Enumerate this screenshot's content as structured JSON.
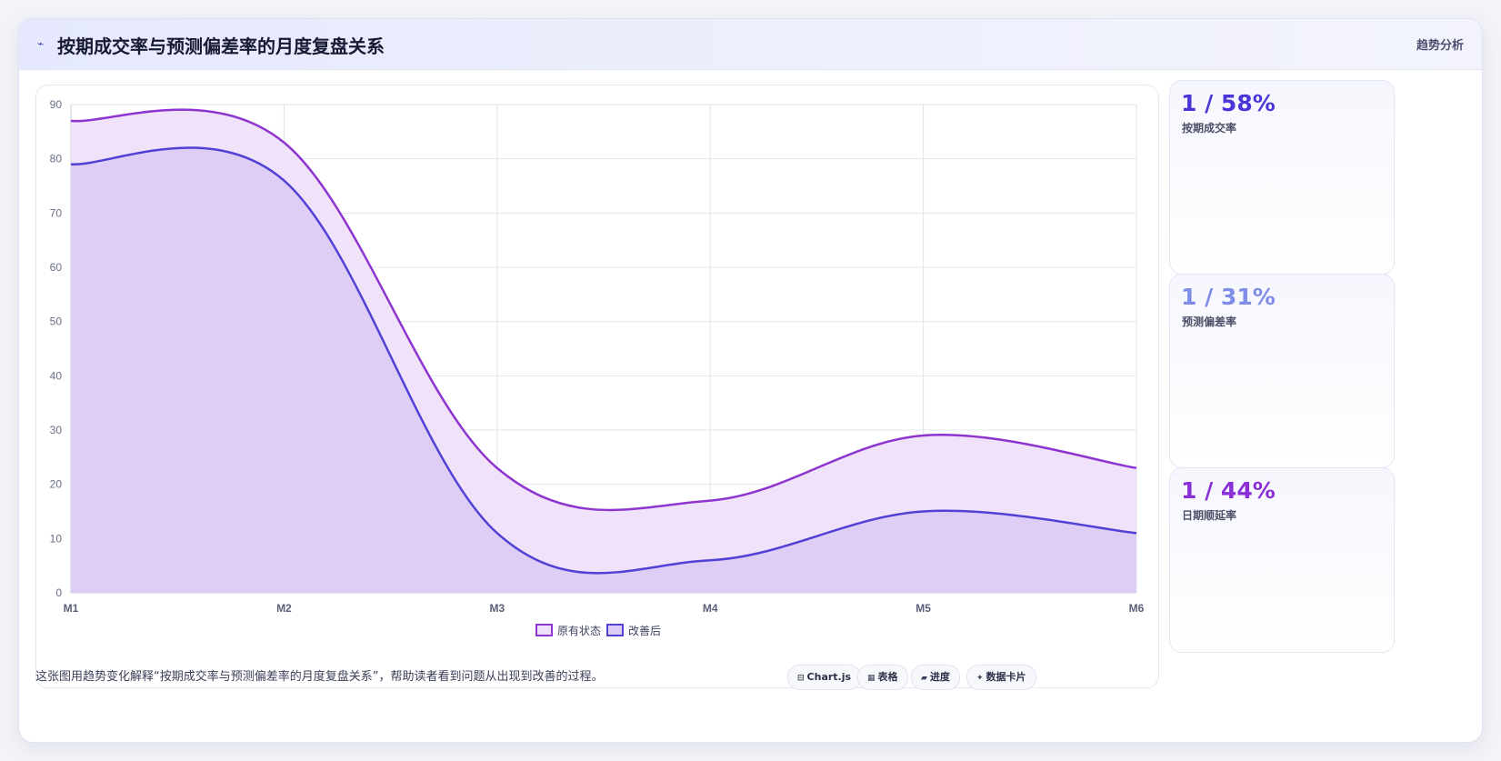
{
  "header": {
    "icon": "wave-icon",
    "title": "按期成交率与预测偏差率的月度复盘关系",
    "tag": "趋势分析"
  },
  "kpis": [
    {
      "value": "1 / 58%",
      "label": "按期成交率",
      "color": "#4b35d6"
    },
    {
      "value": "1 / 31%",
      "label": "预测偏差率",
      "color": "#7f8ce8"
    },
    {
      "value": "1 / 44%",
      "label": "日期顺延率",
      "color": "#8a2fd6"
    }
  ],
  "footer": {
    "text": "这张图用趋势变化解释“按期成交率与预测偏差率的月度复盘关系”，帮助读者看到问题从出现到改善的过程。",
    "chips": [
      {
        "icon": "table-small-icon",
        "glyph": "⊟",
        "label": "Chart.js"
      },
      {
        "icon": "table-icon",
        "glyph": "▦",
        "label": "表格"
      },
      {
        "icon": "progress-icon",
        "glyph": "▰",
        "label": "进度"
      },
      {
        "icon": "sparkle-icon",
        "glyph": "✦",
        "label": "数据卡片"
      }
    ]
  },
  "chart_data": {
    "type": "area",
    "categories": [
      "M1",
      "M2",
      "M3",
      "M4",
      "M5",
      "M6"
    ],
    "ylim": [
      0,
      90
    ],
    "yticks": [
      0,
      10,
      20,
      30,
      40,
      50,
      60,
      70,
      80,
      90
    ],
    "grid": true,
    "legend_position": "bottom",
    "series": [
      {
        "name": "原有状态",
        "values": [
          87,
          83,
          23,
          17,
          29,
          23
        ],
        "color": "#8e35d0",
        "fill": "#eee0f9"
      },
      {
        "name": "改善后",
        "values": [
          79,
          76,
          11,
          6,
          15,
          11
        ],
        "color": "#5141d5",
        "fill": "#dcccf6"
      }
    ]
  }
}
